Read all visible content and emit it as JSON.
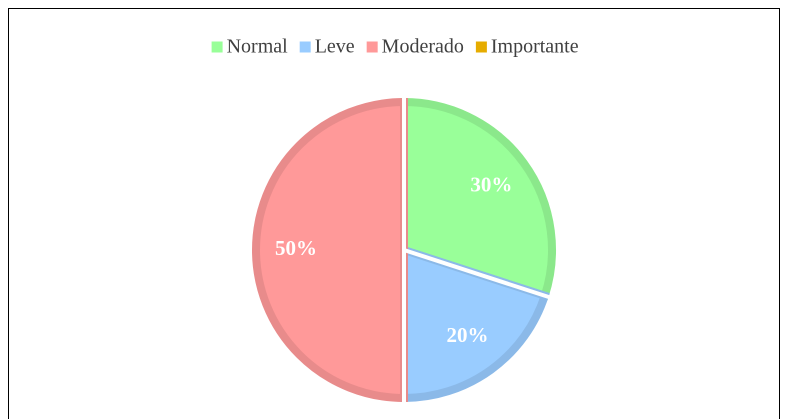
{
  "chart_data": {
    "type": "pie",
    "categories": [
      "Normal",
      "Leve",
      "Moderado",
      "Importante"
    ],
    "values": [
      30,
      20,
      50,
      0
    ],
    "value_labels": [
      "30%",
      "20%",
      "50%",
      null
    ],
    "colors": [
      "#99ff99",
      "#99ccff",
      "#ff9999",
      "#e6ac00"
    ],
    "legend": "top"
  }
}
